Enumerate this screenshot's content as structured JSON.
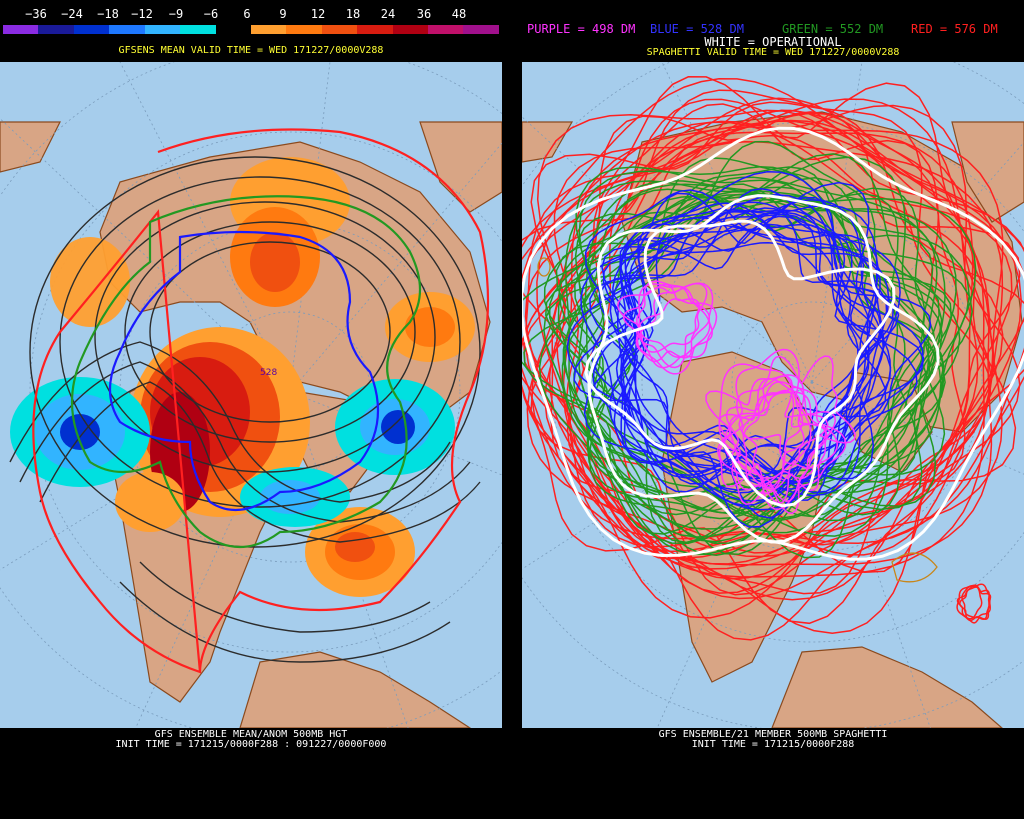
{
  "left": {
    "scale": {
      "labels": [
        "−36",
        "−24",
        "−18",
        "−12",
        "−9",
        "−6",
        "6",
        "9",
        "12",
        "18",
        "24",
        "36",
        "48"
      ],
      "colors": [
        "#8a2be2",
        "#1a1a99",
        "#0030d0",
        "#1e78ff",
        "#32b4ff",
        "#00e0e0",
        "#000000",
        "#ff9f30",
        "#ff7a10",
        "#f05010",
        "#d81c10",
        "#b00012",
        "#c0106a",
        "#a0108c"
      ]
    },
    "title": "GFSENS MEAN VALID TIME = WED 171227/0000V288",
    "footer_1": "GFS ENSEMBLE MEAN/ANOM 500MB HGT",
    "footer_2": "INIT TIME = 171215/0000F288 : 091227/0000F000",
    "contour_label": "528"
  },
  "right": {
    "legend": {
      "purple": "PURPLE = 498 DM",
      "blue": "BLUE = 528 DM",
      "green": "GREEN = 552 DM",
      "red": "RED = 576 DM",
      "white": "WHITE = OPERATIONAL"
    },
    "title": "SPAGHETTI VALID TIME = WED 171227/0000V288",
    "footer_1": "GFS ENSEMBLE/21 MEMBER 500MB SPAGHETTI",
    "footer_2": "INIT TIME = 171215/0000F288"
  },
  "colors": {
    "ocean": "#a6cdec",
    "land": "#d8a585",
    "coast": "#8b4a1e",
    "title_yellow": "#ffff33",
    "legend_purple": "#ff33ff",
    "legend_blue": "#3333ff",
    "legend_green": "#229922",
    "legend_red": "#ff2020",
    "white": "#ffffff"
  }
}
